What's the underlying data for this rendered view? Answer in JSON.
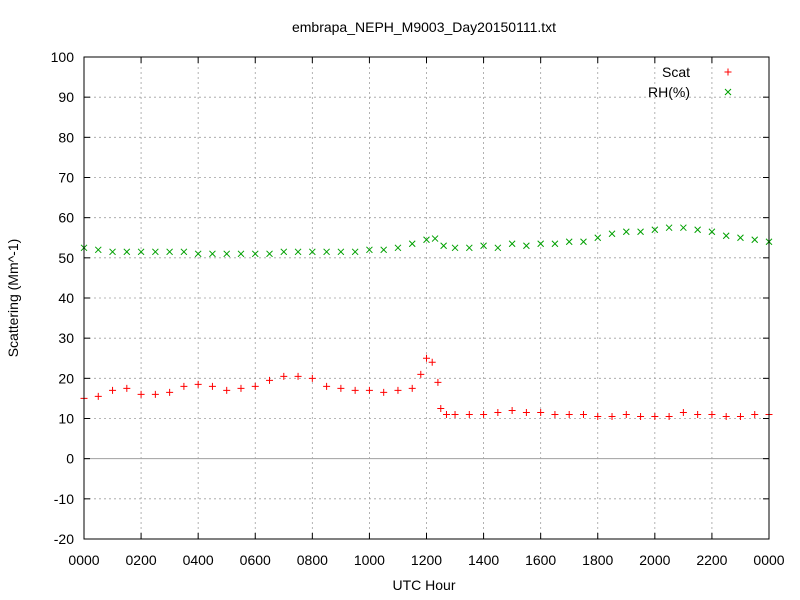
{
  "chart_data": {
    "type": "scatter",
    "title": "embrapa_NEPH_M9003_Day20150111.txt",
    "xlabel": "UTC Hour",
    "ylabel": "Scattering (Mm^-1)",
    "xlim": [
      0,
      24
    ],
    "ylim": [
      -20,
      100
    ],
    "grid": true,
    "legend_position": "top-right",
    "x_ticks": [
      {
        "value": 0,
        "label": "0000"
      },
      {
        "value": 2,
        "label": "0200"
      },
      {
        "value": 4,
        "label": "0400"
      },
      {
        "value": 6,
        "label": "0600"
      },
      {
        "value": 8,
        "label": "0800"
      },
      {
        "value": 10,
        "label": "1000"
      },
      {
        "value": 12,
        "label": "1200"
      },
      {
        "value": 14,
        "label": "1400"
      },
      {
        "value": 16,
        "label": "1600"
      },
      {
        "value": 18,
        "label": "1800"
      },
      {
        "value": 20,
        "label": "2000"
      },
      {
        "value": 22,
        "label": "2200"
      },
      {
        "value": 24,
        "label": "0000"
      }
    ],
    "y_ticks": [
      -20,
      -10,
      0,
      10,
      20,
      30,
      40,
      50,
      60,
      70,
      80,
      90,
      100
    ],
    "series": [
      {
        "name": "Scat",
        "color": "#ff0000",
        "marker": "plus",
        "x": [
          0,
          0.5,
          1,
          1.5,
          2,
          2.5,
          3,
          3.5,
          4,
          4.5,
          5,
          5.5,
          6,
          6.5,
          7,
          7.5,
          8,
          8.5,
          9,
          9.5,
          10,
          10.5,
          11,
          11.5,
          11.8,
          12,
          12.2,
          12.4,
          12.5,
          12.7,
          13,
          13.5,
          14,
          14.5,
          15,
          15.5,
          16,
          16.5,
          17,
          17.5,
          18,
          18.5,
          19,
          19.5,
          20,
          20.5,
          21,
          21.5,
          22,
          22.5,
          23,
          23.5,
          24
        ],
        "y": [
          15,
          15.5,
          17,
          17.5,
          16,
          16,
          16.5,
          18,
          18.5,
          18,
          17,
          17.5,
          18,
          19.5,
          20.5,
          20.5,
          20,
          18,
          17.5,
          17,
          17,
          16.5,
          17,
          17.5,
          21,
          25,
          24,
          19,
          12.5,
          11,
          11,
          11,
          11,
          11.5,
          12,
          11.5,
          11.5,
          11,
          11,
          11,
          10.5,
          10.5,
          11,
          10.5,
          10.5,
          10.5,
          11.5,
          11,
          11,
          10.5,
          10.5,
          11,
          11
        ]
      },
      {
        "name": "RH(%)",
        "color": "#00a000",
        "marker": "cross",
        "x": [
          0,
          0.5,
          1,
          1.5,
          2,
          2.5,
          3,
          3.5,
          4,
          4.5,
          5,
          5.5,
          6,
          6.5,
          7,
          7.5,
          8,
          8.5,
          9,
          9.5,
          10,
          10.5,
          11,
          11.5,
          12,
          12.3,
          12.6,
          13,
          13.5,
          14,
          14.5,
          15,
          15.5,
          16,
          16.5,
          17,
          17.5,
          18,
          18.5,
          19,
          19.5,
          20,
          20.5,
          21,
          21.5,
          22,
          22.5,
          23,
          23.5,
          24
        ],
        "y": [
          52.5,
          52,
          51.5,
          51.5,
          51.5,
          51.5,
          51.5,
          51.5,
          51,
          51,
          51,
          51,
          51,
          51,
          51.5,
          51.5,
          51.5,
          51.5,
          51.5,
          51.5,
          52,
          52,
          52.5,
          53.5,
          54.5,
          54.8,
          53,
          52.5,
          52.5,
          53,
          52.5,
          53.5,
          53,
          53.5,
          53.5,
          54,
          54,
          55,
          56,
          56.5,
          56.5,
          57,
          57.5,
          57.5,
          57,
          56.5,
          55.5,
          55,
          54.5,
          54
        ]
      }
    ]
  }
}
